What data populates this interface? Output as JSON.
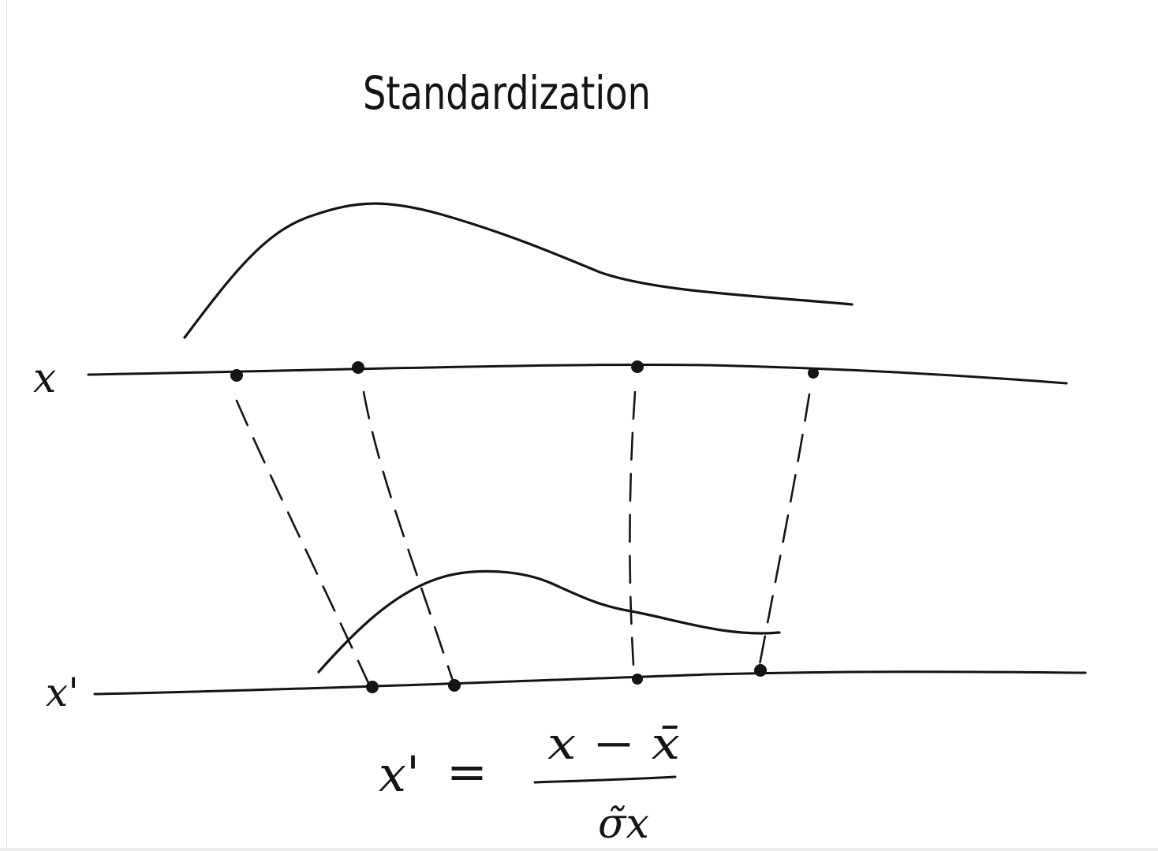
{
  "title": "Standardization",
  "axes": {
    "original_label": "x",
    "standardized_label": "x'"
  },
  "formula": {
    "lhs": "x'",
    "equals": "=",
    "numerator": "x − x̄",
    "denominator": "σ̃x"
  },
  "points": {
    "original_count": 4,
    "standardized_count": 4
  },
  "colors": {
    "ink": "#141414",
    "background": "#ffffff"
  }
}
